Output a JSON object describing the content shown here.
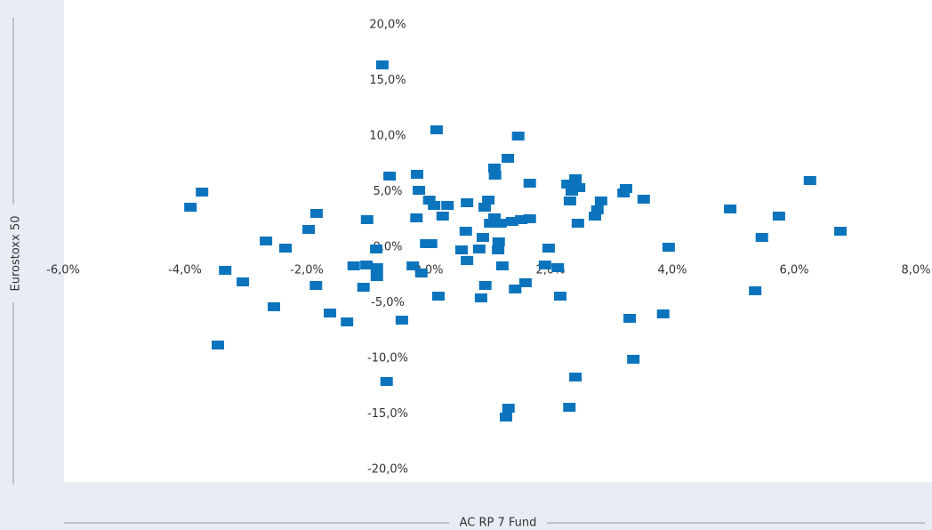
{
  "chart_data": {
    "type": "scatter",
    "x_label": "AC RP 7 Fund",
    "y_label": "Eurostoxx 50",
    "color": "#0b74bd",
    "xlim": [
      -6,
      8
    ],
    "ylim": [
      -20,
      20
    ],
    "xticks": [
      {
        "value": -6,
        "label": "-6,0%"
      },
      {
        "value": -4,
        "label": "-4,0%"
      },
      {
        "value": -2,
        "label": "-2,0%"
      },
      {
        "value": 0,
        "label": "0,0%"
      },
      {
        "value": 2,
        "label": "2,0%"
      },
      {
        "value": 4,
        "label": "4,0%"
      },
      {
        "value": 6,
        "label": "6,0%"
      },
      {
        "value": 8,
        "label": "8,0%"
      }
    ],
    "yticks": [
      {
        "value": -20,
        "label": "-20,0%"
      },
      {
        "value": -15,
        "label": "-15,0%"
      },
      {
        "value": -10,
        "label": "-10,0%"
      },
      {
        "value": -5,
        "label": "-5,0%"
      },
      {
        "value": 0,
        "label": "0,0%"
      },
      {
        "value": 5,
        "label": "5,0%"
      },
      {
        "value": 10,
        "label": "10,0%"
      },
      {
        "value": 15,
        "label": "15,0%"
      },
      {
        "value": 20,
        "label": "20,0%"
      }
    ],
    "x": [
      -0.76,
      0.13,
      1.47,
      1.3,
      1.08,
      1.09,
      -0.64,
      -0.19,
      -3.72,
      -3.91,
      -0.16,
      0.01,
      0.09,
      0.31,
      0.98,
      0.92,
      1.66,
      2.41,
      2.28,
      2.35,
      2.47,
      2.32,
      2.83,
      3.24,
      3.2,
      3.53,
      2.77,
      2.73,
      2.45,
      4.95,
      5.75,
      6.26,
      6.76,
      5.47,
      -1.84,
      -1.01,
      -0.2,
      0.23,
      0.63,
      -1.97,
      -2.67,
      -2.35,
      -0.86,
      -0.04,
      0.04,
      0.61,
      1.08,
      1.01,
      1.18,
      1.37,
      1.52,
      1.66,
      0.89,
      1.15,
      1.14,
      0.54,
      0.83,
      1.97,
      3.94,
      -3.34,
      -3.05,
      -2.54,
      -1.85,
      -1.62,
      -1.34,
      -1.23,
      -1.02,
      -0.85,
      -0.85,
      -1.07,
      -0.26,
      -0.12,
      0.16,
      0.63,
      1.21,
      0.93,
      0.86,
      1.42,
      1.59,
      2.12,
      1.91,
      2.16,
      -0.44,
      -3.46,
      3.3,
      3.85,
      3.36,
      2.41,
      -0.69,
      2.31,
      1.31,
      1.27,
      5.36
    ],
    "values": [
      16.4,
      10.56,
      10.0,
      8.0,
      7.12,
      6.48,
      6.4,
      6.56,
      4.96,
      3.6,
      5.12,
      4.24,
      3.76,
      3.76,
      4.24,
      3.6,
      5.76,
      6.16,
      5.68,
      5.04,
      5.36,
      4.16,
      4.16,
      5.28,
      4.88,
      4.32,
      3.36,
      2.8,
      2.16,
      3.44,
      2.8,
      6.0,
      1.44,
      0.88,
      3.04,
      2.48,
      2.64,
      2.8,
      4.0,
      1.6,
      0.56,
      -0.08,
      -0.16,
      0.32,
      0.32,
      1.44,
      2.64,
      2.16,
      2.16,
      2.32,
      2.48,
      2.56,
      0.88,
      0.48,
      -0.24,
      -0.24,
      -0.16,
      -0.08,
      0.0,
      -2.08,
      -3.12,
      -5.36,
      -3.44,
      -5.92,
      -6.72,
      -1.68,
      -1.6,
      -1.84,
      -2.64,
      -3.6,
      -1.68,
      -2.32,
      -4.4,
      -1.2,
      -1.68,
      -3.44,
      -4.56,
      -3.76,
      -3.2,
      -1.84,
      -1.6,
      -4.4,
      -6.56,
      -8.8,
      -6.4,
      -6.0,
      -10.08,
      -11.68,
      -12.08,
      -14.4,
      -14.48,
      -15.28,
      -3.92
    ]
  }
}
